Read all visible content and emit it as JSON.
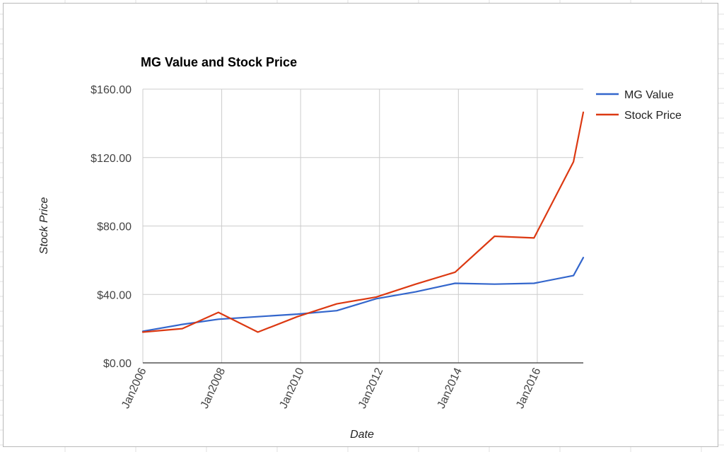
{
  "chart_data": {
    "type": "line",
    "title": "MG Value and Stock Price",
    "xlabel": "Date",
    "ylabel": "Stock Price",
    "x": [
      "2006-01",
      "2007-01",
      "2007-12",
      "2008-12",
      "2009-12",
      "2010-12",
      "2011-12",
      "2012-12",
      "2013-12",
      "2014-12",
      "2015-12",
      "2016-12",
      "2017-03"
    ],
    "series": [
      {
        "name": "MG Value",
        "color": "#3366cc",
        "values": [
          18.5,
          22.5,
          25.5,
          27.0,
          28.5,
          30.5,
          37.5,
          41.5,
          46.5,
          46.0,
          46.5,
          51.0,
          61.5
        ]
      },
      {
        "name": "Stock Price",
        "color": "#dc3912",
        "values": [
          18.0,
          20.0,
          29.5,
          18.0,
          27.0,
          34.5,
          38.5,
          46.0,
          53.0,
          74.0,
          73.0,
          117.5,
          146.5
        ]
      }
    ],
    "ylim": [
      0,
      160
    ],
    "yticks": [
      0,
      40,
      80,
      120,
      160
    ],
    "ytick_labels": [
      "$0.00",
      "$40.00",
      "$80.00",
      "$120.00",
      "$160.00"
    ],
    "xlim": [
      "2006-01",
      "2017-03"
    ],
    "xticks": [
      "2006-01",
      "2008-01",
      "2010-01",
      "2012-01",
      "2014-01",
      "2016-01"
    ],
    "xtick_labels": [
      "Jan2006",
      "Jan2008",
      "Jan2010",
      "Jan2012",
      "Jan2014",
      "Jan2016"
    ],
    "grid": true,
    "legend": "right"
  }
}
